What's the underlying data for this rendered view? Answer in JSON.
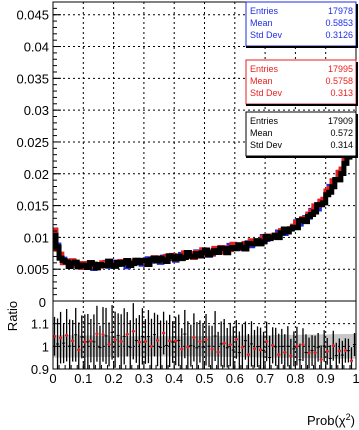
{
  "chart_data": [
    {
      "type": "line",
      "panel": "distribution",
      "xlabel": "",
      "ylabel": "",
      "xlim": [
        0,
        1
      ],
      "ylim": [
        0,
        0.047
      ],
      "grid": true,
      "y_ticks": [
        0.005,
        0.01,
        0.015,
        0.02,
        0.025,
        0.03,
        0.035,
        0.04,
        0.045
      ],
      "y_tick_labels": [
        "0.005",
        "0.01",
        "0.015",
        "0.02",
        "0.025",
        "0.03",
        "0.035",
        "0.04",
        "0.045"
      ],
      "anchor_x": [
        0.0,
        0.01,
        0.02,
        0.04,
        0.07,
        0.1,
        0.15,
        0.2,
        0.25,
        0.3,
        0.35,
        0.4,
        0.45,
        0.5,
        0.55,
        0.6,
        0.65,
        0.7,
        0.75,
        0.8,
        0.85,
        0.88,
        0.91,
        0.93,
        0.95,
        0.97,
        0.985,
        1.0
      ],
      "series": [
        {
          "color": "#1f2ee6",
          "anchor_y": [
            0.0125,
            0.0095,
            0.0075,
            0.0063,
            0.0058,
            0.0056,
            0.0056,
            0.0058,
            0.0059,
            0.0062,
            0.0065,
            0.0068,
            0.0071,
            0.0075,
            0.0079,
            0.0084,
            0.0089,
            0.0097,
            0.0106,
            0.0118,
            0.0136,
            0.0151,
            0.0172,
            0.0188,
            0.0203,
            0.0222,
            0.0252,
            0.027
          ],
          "stats": {
            "entries_label": "Entries",
            "entries": "17978",
            "mean_label": "Mean",
            "mean": "0.5853",
            "std_label": "Std Dev",
            "std": "0.3126"
          }
        },
        {
          "color": "#e81f1f",
          "anchor_y": [
            0.0122,
            0.0092,
            0.0073,
            0.0062,
            0.0058,
            0.0057,
            0.0057,
            0.0059,
            0.0061,
            0.0063,
            0.0066,
            0.0069,
            0.0072,
            0.0076,
            0.008,
            0.0085,
            0.009,
            0.0098,
            0.0107,
            0.012,
            0.0139,
            0.0154,
            0.0174,
            0.019,
            0.0206,
            0.0226,
            0.025,
            0.0262
          ],
          "stats": {
            "entries_label": "Entries",
            "entries": "17995",
            "mean_label": "Mean",
            "mean": "0.5758",
            "std_label": "Std Dev",
            "std": "0.313"
          }
        },
        {
          "color": "#000000",
          "anchor_y": [
            0.012,
            0.009,
            0.0071,
            0.0061,
            0.0057,
            0.0056,
            0.0056,
            0.0058,
            0.006,
            0.0062,
            0.0065,
            0.0068,
            0.0071,
            0.0075,
            0.0079,
            0.0083,
            0.0088,
            0.0096,
            0.0105,
            0.0117,
            0.0134,
            0.0149,
            0.0168,
            0.0183,
            0.0198,
            0.0218,
            0.0246,
            0.0255
          ],
          "stats": {
            "entries_label": "Entries",
            "entries": "17909",
            "mean_label": "Mean",
            "mean": "0.572",
            "std_label": "Std Dev",
            "std": "0.314"
          }
        }
      ]
    },
    {
      "type": "scatter",
      "panel": "ratio",
      "xlabel": "Prob(χ²)",
      "ylabel": "Ratio",
      "xlim": [
        0,
        1
      ],
      "ylim": [
        0.9,
        1.2
      ],
      "grid": true,
      "x_ticks": [
        0,
        0.1,
        0.2,
        0.3,
        0.4,
        0.5,
        0.6,
        0.7,
        0.8,
        0.9,
        1
      ],
      "x_tick_labels": [
        "0",
        "0.1",
        "0.2",
        "0.3",
        "0.4",
        "0.5",
        "0.6",
        "0.7",
        "0.8",
        "0.9",
        "1"
      ],
      "y_ticks": [
        0.9,
        1.0,
        1.1
      ],
      "y_tick_labels": [
        "0.9",
        "1",
        "1.1"
      ],
      "band": {
        "color": "#c8c8c8",
        "anchor_x": [
          0,
          0.25,
          0.5,
          0.75,
          1.0
        ],
        "half_width": [
          0.05,
          0.045,
          0.045,
          0.05,
          0.055
        ],
        "center": 1.0
      },
      "point_color": "#e81f1f",
      "error_color": "#000000",
      "anchor_x": [
        0,
        0.1,
        0.2,
        0.3,
        0.4,
        0.5,
        0.6,
        0.7,
        0.8,
        0.9,
        1.0
      ],
      "anchor_ratio": [
        1.03,
        1.02,
        1.04,
        1.03,
        1.02,
        1.01,
        1.0,
        0.99,
        0.98,
        0.975,
        0.97
      ],
      "anchor_err": [
        0.1,
        0.11,
        0.11,
        0.11,
        0.1,
        0.1,
        0.09,
        0.085,
        0.075,
        0.06,
        0.05
      ]
    }
  ],
  "top_axis_label": "0"
}
